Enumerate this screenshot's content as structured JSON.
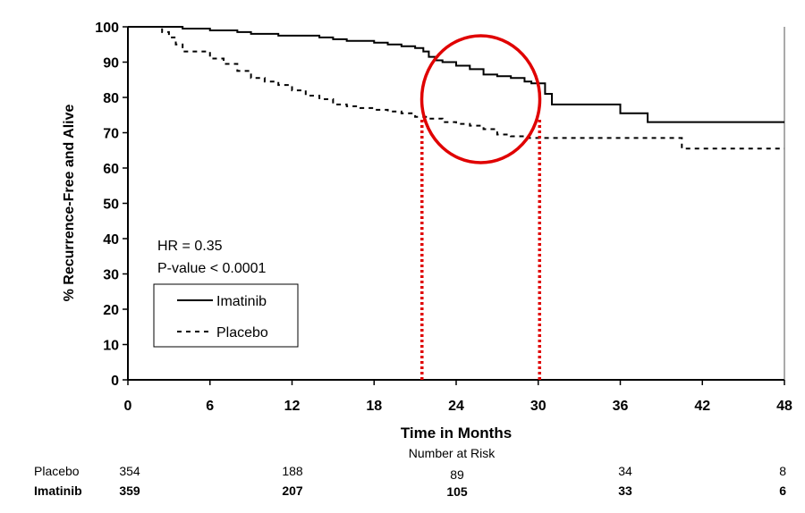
{
  "chart_data": {
    "type": "line",
    "title": "",
    "xlabel": "Time in Months",
    "ylabel": "% Recurrence-Free and Alive",
    "xlim": [
      0,
      48
    ],
    "ylim": [
      0,
      100
    ],
    "x_ticks": [
      "0",
      "6",
      "12",
      "18",
      "24",
      "30",
      "36",
      "42",
      "48"
    ],
    "y_ticks": [
      "0",
      "10",
      "20",
      "30",
      "40",
      "50",
      "60",
      "70",
      "80",
      "90",
      "100"
    ],
    "grid": false,
    "legend_position": "lower-left",
    "annotation": {
      "hr": "HR = 0.35",
      "pvalue": "P-value < 0.0001"
    },
    "series": [
      {
        "name": "Imatinib",
        "style": "solid",
        "color": "#000000",
        "x": [
          0,
          2,
          4,
          6,
          8,
          9,
          10,
          11,
          12,
          14,
          15,
          16,
          17,
          18,
          19,
          20,
          21,
          21.6,
          22,
          22.5,
          23,
          24,
          25,
          26,
          27,
          28,
          29,
          29.5,
          30,
          30.5,
          31,
          33,
          35,
          36,
          37,
          38,
          40,
          48
        ],
        "y": [
          100,
          100,
          99.5,
          99,
          98.5,
          98,
          98,
          97.5,
          97.5,
          97,
          96.5,
          96,
          96,
          95.5,
          95,
          94.5,
          94,
          93,
          91.5,
          90.5,
          90,
          89,
          88,
          86.5,
          86,
          85.5,
          84.5,
          84,
          84,
          81,
          78,
          78,
          78,
          75.5,
          75.5,
          73,
          73,
          73
        ]
      },
      {
        "name": "Placebo",
        "style": "dashed",
        "color": "#000000",
        "x": [
          0,
          2,
          2.5,
          3,
          3.5,
          4,
          5,
          6,
          7,
          8,
          9,
          10,
          11,
          12,
          13,
          14,
          15,
          16,
          17,
          18,
          19,
          20,
          21,
          22,
          23,
          24,
          25,
          26,
          27,
          28,
          29,
          30,
          32,
          34,
          38,
          40,
          40.5,
          44,
          48
        ],
        "y": [
          100,
          100,
          98.5,
          97,
          95,
          93,
          93,
          91,
          89.5,
          87.5,
          85.5,
          84.5,
          83.5,
          82,
          80.5,
          79.5,
          78,
          77.5,
          77,
          76.5,
          76,
          75.5,
          74.5,
          74,
          73,
          72.5,
          72,
          71,
          69.5,
          69,
          68.5,
          68.5,
          68.5,
          68.5,
          68.5,
          68.5,
          65.5,
          65.5,
          65.5
        ]
      }
    ],
    "highlight": {
      "color": "#e00000",
      "circle_center": [
        25.8,
        79.5
      ],
      "dotted_lines_x": [
        21.5,
        30.1
      ]
    },
    "risk_table": {
      "title": "Number at Risk",
      "times": [
        0,
        12,
        24,
        36,
        48
      ],
      "rows": [
        {
          "label": "Placebo",
          "bold": false,
          "values": [
            "354",
            "188",
            "89",
            "34",
            "8"
          ]
        },
        {
          "label": "Imatinib",
          "bold": true,
          "values": [
            "359",
            "207",
            "105",
            "33",
            "6"
          ]
        }
      ]
    }
  }
}
